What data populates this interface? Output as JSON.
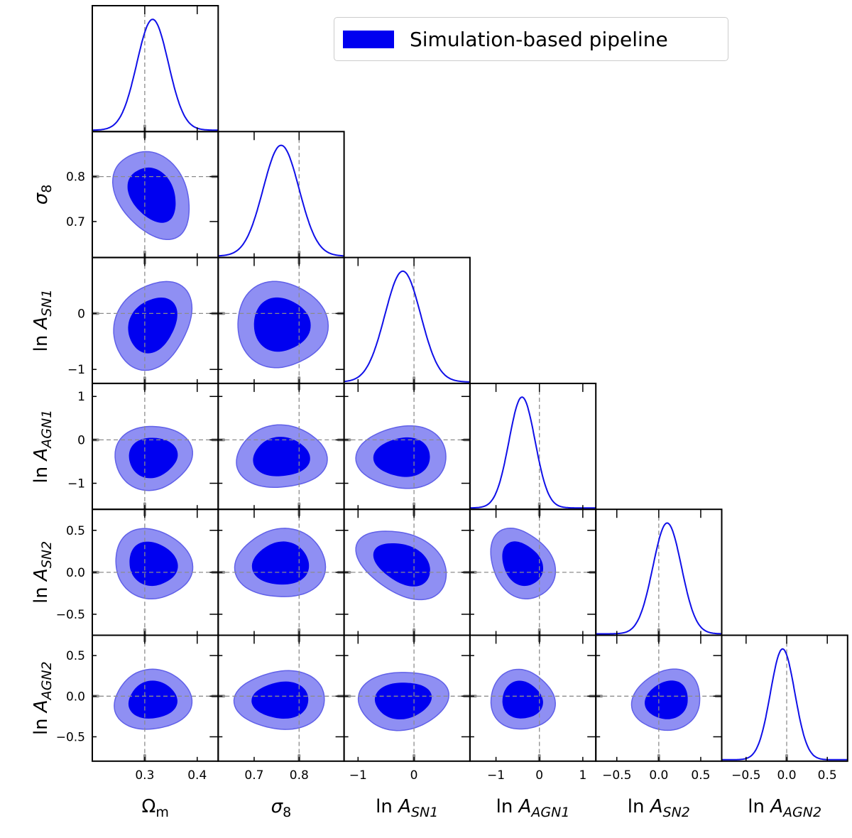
{
  "chart_data": {
    "type": "corner",
    "legend": {
      "label": "Simulation-based pipeline",
      "location": "upper-right"
    },
    "colors": {
      "line": "#1010e8",
      "inner_fill": "#0000f0",
      "outer_fill": "#8f8ff3",
      "outer_edge": "#6060e8",
      "marker": "#909090"
    },
    "parameters": [
      {
        "name": "Omega_m",
        "label": "Ω",
        "sub": "m",
        "fiducial": 0.3,
        "mean": 0.315,
        "std": 0.03,
        "range": [
          0.2,
          0.44
        ],
        "x_ticks": [
          0.3,
          0.4
        ],
        "x_tick_labels": [
          "0.3",
          "0.4"
        ],
        "y_ticks": [],
        "y_tick_labels": []
      },
      {
        "name": "sigma_8",
        "label": "σ",
        "sub": "8",
        "fiducial": 0.8,
        "mean": 0.76,
        "std": 0.04,
        "range": [
          0.62,
          0.9
        ],
        "x_ticks": [
          0.7,
          0.8
        ],
        "x_tick_labels": [
          "0.7",
          "0.8"
        ],
        "y_ticks": [
          0.7,
          0.8
        ],
        "y_tick_labels": [
          "0.7",
          "0.8"
        ]
      },
      {
        "name": "lnA_SN1",
        "label": "ln A",
        "sub": "SN1",
        "fiducial": 0.0,
        "mean": -0.2,
        "std": 0.32,
        "range": [
          -1.25,
          1.0
        ],
        "x_ticks": [
          -1,
          0
        ],
        "x_tick_labels": [
          "−1",
          "0"
        ],
        "y_ticks": [
          -1,
          0
        ],
        "y_tick_labels": [
          "−1",
          "0"
        ]
      },
      {
        "name": "lnA_AGN1",
        "label": "ln A",
        "sub": "AGN1",
        "fiducial": 0.0,
        "mean": -0.4,
        "std": 0.3,
        "range": [
          -1.6,
          1.3
        ],
        "x_ticks": [
          -1,
          0,
          1
        ],
        "x_tick_labels": [
          "−1",
          "0",
          "1"
        ],
        "y_ticks": [
          -1,
          0,
          1
        ],
        "y_tick_labels": [
          "−1",
          "0",
          "1"
        ]
      },
      {
        "name": "lnA_SN2",
        "label": "ln A",
        "sub": "SN2",
        "fiducial": 0.0,
        "mean": 0.1,
        "std": 0.17,
        "range": [
          -0.75,
          0.75
        ],
        "x_ticks": [
          -0.5,
          0.0,
          0.5
        ],
        "x_tick_labels": [
          "−0.5",
          "0.0",
          "0.5"
        ],
        "y_ticks": [
          -0.5,
          0.0,
          0.5
        ],
        "y_tick_labels": [
          "−0.5",
          "0.0",
          "0.5"
        ]
      },
      {
        "name": "lnA_AGN2",
        "label": "ln A",
        "sub": "AGN2",
        "fiducial": 0.0,
        "mean": -0.05,
        "std": 0.15,
        "range": [
          -0.8,
          0.75
        ],
        "x_ticks": [
          -0.5,
          0.0,
          0.5
        ],
        "x_tick_labels": [
          "−0.5",
          "0.0",
          "0.5"
        ],
        "y_ticks": [
          -0.5,
          0.0,
          0.5
        ],
        "y_tick_labels": [
          "−0.5",
          "0.0",
          "0.5"
        ]
      }
    ],
    "correlations": [
      [
        0,
        1,
        -0.35
      ],
      [
        0,
        2,
        0.2
      ],
      [
        0,
        3,
        0.0
      ],
      [
        0,
        4,
        -0.15
      ],
      [
        0,
        5,
        0.0
      ],
      [
        1,
        2,
        -0.05
      ],
      [
        1,
        3,
        0.0
      ],
      [
        1,
        4,
        0.0
      ],
      [
        1,
        5,
        0.0
      ],
      [
        2,
        3,
        0.05
      ],
      [
        2,
        4,
        -0.35
      ],
      [
        2,
        5,
        0.1
      ],
      [
        3,
        4,
        -0.2
      ],
      [
        3,
        5,
        0.0
      ],
      [
        4,
        5,
        0.15
      ]
    ],
    "contour_levels": [
      "68%",
      "95%"
    ]
  }
}
